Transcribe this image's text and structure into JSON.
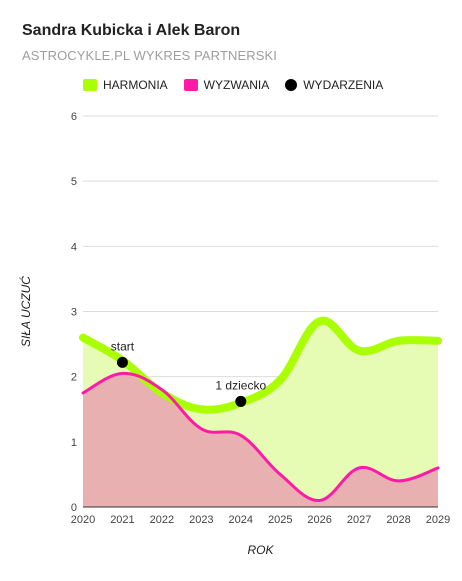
{
  "header": {
    "title": "Sandra Kubicka i Alek Baron",
    "subtitle": "ASTROCYKLE.PL WYKRES PARTNERSKI"
  },
  "colors": {
    "harmonia": "#aaff00",
    "harmonia_fill": "#e6fbb3",
    "wyzwania": "#ff1aa8",
    "wyzwania_fill": "#e8b0b0",
    "wydarzenia": "#000000",
    "grid": "#dddddd",
    "axis": "#333333"
  },
  "chart_data": {
    "type": "area",
    "xlabel": "ROK",
    "ylabel": "SIŁA UCZUĆ",
    "xlim": [
      2020,
      2029
    ],
    "ylim": [
      0,
      6
    ],
    "x_ticks": [
      "2020",
      "2021",
      "2022",
      "2023",
      "2024",
      "2025",
      "2026",
      "2027",
      "2028",
      "2029"
    ],
    "y_ticks": [
      "0",
      "1",
      "2",
      "3",
      "4",
      "5",
      "6"
    ],
    "grid": true,
    "legend_position": "top-left",
    "legend": [
      "HARMONIA",
      "WYZWANIA",
      "WYDARZENIA"
    ],
    "series": [
      {
        "name": "HARMONIA",
        "x": [
          2020,
          2021,
          2022,
          2023,
          2024,
          2025,
          2026,
          2027,
          2028,
          2029
        ],
        "values": [
          2.6,
          2.25,
          1.75,
          1.5,
          1.6,
          1.95,
          2.85,
          2.4,
          2.55,
          2.55
        ]
      },
      {
        "name": "WYZWANIA",
        "x": [
          2020,
          2021,
          2022,
          2023,
          2024,
          2025,
          2026,
          2027,
          2028,
          2029
        ],
        "values": [
          1.75,
          2.05,
          1.8,
          1.2,
          1.1,
          0.5,
          0.1,
          0.6,
          0.4,
          0.6
        ]
      }
    ],
    "events": [
      {
        "name": "WYDARZENIA",
        "x": 2021,
        "y": 2.22,
        "label": "start"
      },
      {
        "name": "WYDARZENIA",
        "x": 2024,
        "y": 1.62,
        "label": "1 dziecko"
      }
    ]
  }
}
